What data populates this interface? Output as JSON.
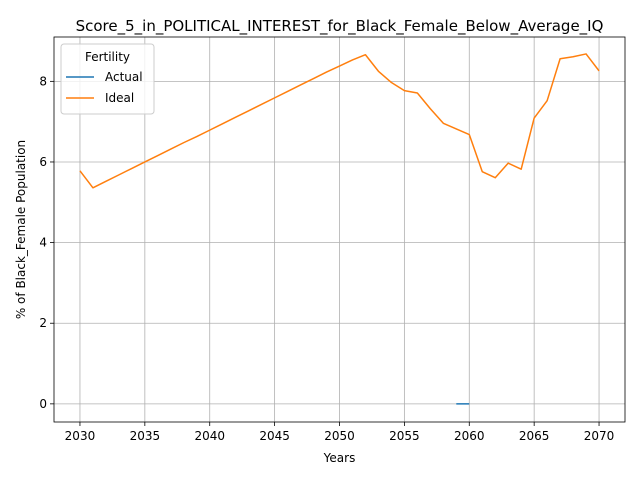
{
  "chart_data": {
    "type": "line",
    "title": "Score_5_in_POLITICAL_INTEREST_for_Black_Female_Below_Average_IQ",
    "xlabel": "Years",
    "ylabel": "% of Black_Female Population",
    "xlim": [
      2028,
      2072
    ],
    "ylim": [
      -0.45,
      9.1
    ],
    "x_ticks": [
      2030,
      2035,
      2040,
      2045,
      2050,
      2055,
      2060,
      2065,
      2070
    ],
    "y_ticks": [
      0,
      2,
      4,
      6,
      8
    ],
    "grid": true,
    "legend": {
      "title": "Fertility",
      "placement": "upper-left"
    },
    "series": [
      {
        "name": "Actual",
        "color": "#1f77b4",
        "x": [
          2059,
          2060
        ],
        "y": [
          0.0,
          0.0
        ]
      },
      {
        "name": "Ideal",
        "color": "#ff7f0e",
        "x": [
          2030,
          2031,
          2032,
          2033,
          2034,
          2035,
          2036,
          2037,
          2038,
          2039,
          2040,
          2041,
          2042,
          2043,
          2044,
          2045,
          2046,
          2047,
          2048,
          2049,
          2050,
          2051,
          2052,
          2053,
          2054,
          2055,
          2056,
          2057,
          2058,
          2059,
          2060,
          2061,
          2062,
          2063,
          2064,
          2065,
          2066,
          2067,
          2068,
          2069,
          2070
        ],
        "y": [
          5.78,
          5.36,
          5.52,
          5.68,
          5.84,
          6.0,
          6.16,
          6.32,
          6.48,
          6.63,
          6.79,
          6.95,
          7.11,
          7.27,
          7.43,
          7.59,
          7.75,
          7.91,
          8.07,
          8.23,
          8.38,
          8.53,
          8.66,
          8.25,
          7.97,
          7.77,
          7.71,
          7.32,
          6.96,
          6.82,
          6.68,
          5.76,
          5.61,
          5.97,
          5.82,
          7.09,
          7.52,
          8.56,
          8.61,
          8.68,
          8.26
        ]
      }
    ]
  }
}
